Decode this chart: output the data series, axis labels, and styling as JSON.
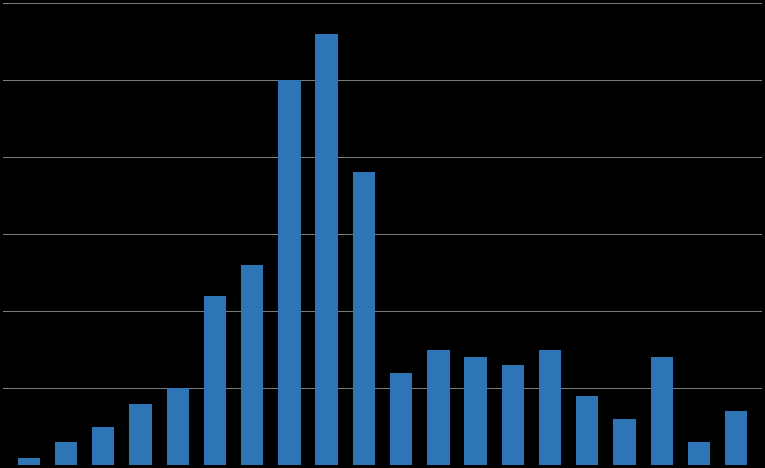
{
  "values": [
    1,
    3,
    5,
    8,
    10,
    22,
    26,
    50,
    56,
    38,
    12,
    15,
    14,
    13,
    15,
    9,
    6,
    14,
    3,
    7
  ],
  "bar_color": "#2E75B6",
  "background_color": "#000000",
  "plot_bg_color": "#000000",
  "grid_color": "#808080",
  "grid_linewidth": 0.7,
  "ylim": [
    0,
    60
  ],
  "n_gridlines": 6,
  "bar_width": 0.6,
  "figsize": [
    7.65,
    4.68
  ],
  "dpi": 100
}
